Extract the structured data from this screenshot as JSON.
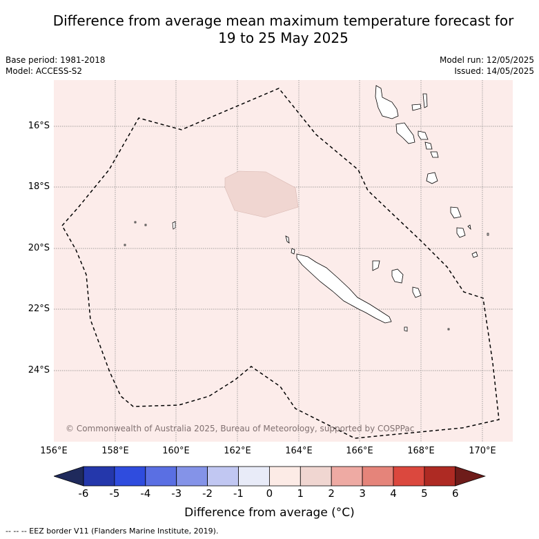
{
  "title_line1": "Difference from average mean maximum temperature forecast for",
  "title_line2": "19 to 25 May 2025",
  "base_period": "Base period: 1981-2018",
  "model": "Model: ACCESS-S2",
  "model_run": "Model run: 12/05/2025",
  "issued": "Issued: 14/05/2025",
  "lat_labels": [
    "16°S",
    "18°S",
    "20°S",
    "22°S",
    "24°S"
  ],
  "lon_labels": [
    "156°E",
    "158°E",
    "160°E",
    "162°E",
    "164°E",
    "166°E",
    "168°E",
    "170°E"
  ],
  "credit": "© Commonwealth of Australia 2025, Bureau of Meteorology, supported by COSPPac",
  "colorbar": {
    "ticks": [
      "-6",
      "-5",
      "-4",
      "-3",
      "-2",
      "-1",
      "0",
      "1",
      "2",
      "3",
      "4",
      "5",
      "6"
    ],
    "colors": [
      "#1f2a5c",
      "#2437ab",
      "#2f4cde",
      "#5a6fe3",
      "#8493e8",
      "#c1c7f2",
      "#e8ebf8",
      "#fcebe6",
      "#f0d6d1",
      "#eeaaa3",
      "#e5847a",
      "#db483e",
      "#ae2a23",
      "#6e1c1a"
    ],
    "label": "Difference from average (°C)"
  },
  "eez_note": "--  --  -- EEZ border V11 (Flanders Marine Institute, 2019)."
}
